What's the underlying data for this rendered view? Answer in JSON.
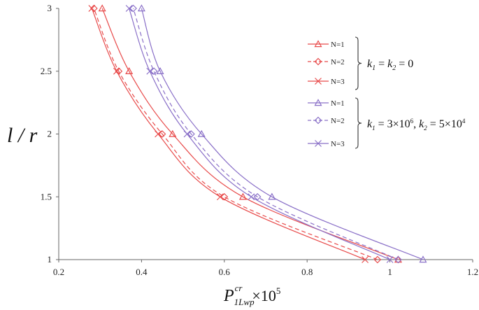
{
  "chart_data": {
    "type": "line",
    "title": "",
    "xlabel_main": "P",
    "xlabel_sup": "cr",
    "xlabel_sub": "1Lwp",
    "xlabel_tail": "×10",
    "xlabel_exp": "5",
    "ylabel": "l / r",
    "xlim": [
      0.2,
      1.2
    ],
    "ylim": [
      1,
      3
    ],
    "x_ticks": [
      "0.2",
      "0.4",
      "0.6",
      "0.8",
      "1",
      "1.2"
    ],
    "y_ticks": [
      "1",
      "1.5",
      "2",
      "2.5",
      "3"
    ],
    "grid": false,
    "legend_placement": "right",
    "colors": {
      "red": "#e84b4b",
      "purple": "#8a70c8"
    },
    "groups": [
      {
        "label_html": "k<sub>1</sub> = k<sub>2</sub> = 0",
        "label": "k1 = k2 = 0"
      },
      {
        "label": "k1 = 3×10^6, k2 = 5×10^4"
      }
    ],
    "series": [
      {
        "name": "N=1",
        "group": 0,
        "color": "red",
        "marker": "triangle",
        "dash": false,
        "y": [
          1,
          1.5,
          2,
          2.5,
          3
        ],
        "x": [
          1.02,
          0.645,
          0.475,
          0.37,
          0.305
        ]
      },
      {
        "name": "N=2",
        "group": 0,
        "color": "red",
        "marker": "diamond",
        "dash": true,
        "y": [
          1,
          1.5,
          2,
          2.5,
          3
        ],
        "x": [
          0.97,
          0.6,
          0.45,
          0.345,
          0.285
        ]
      },
      {
        "name": "N=3",
        "group": 0,
        "color": "red",
        "marker": "cross",
        "dash": false,
        "y": [
          1,
          1.5,
          2,
          2.5,
          3
        ],
        "x": [
          0.94,
          0.59,
          0.44,
          0.34,
          0.28
        ]
      },
      {
        "name": "N=1",
        "group": 1,
        "color": "purple",
        "marker": "triangle",
        "dash": false,
        "y": [
          1,
          1.5,
          2,
          2.5,
          3
        ],
        "x": [
          1.08,
          0.715,
          0.545,
          0.445,
          0.4
        ]
      },
      {
        "name": "N=2",
        "group": 1,
        "color": "purple",
        "marker": "diamond",
        "dash": true,
        "y": [
          1,
          1.5,
          2,
          2.5,
          3
        ],
        "x": [
          1.02,
          0.68,
          0.52,
          0.43,
          0.38
        ]
      },
      {
        "name": "N=3",
        "group": 1,
        "color": "purple",
        "marker": "cross",
        "dash": false,
        "y": [
          1,
          1.5,
          2,
          2.5,
          3
        ],
        "x": [
          1.0,
          0.665,
          0.51,
          0.42,
          0.37
        ]
      }
    ]
  }
}
